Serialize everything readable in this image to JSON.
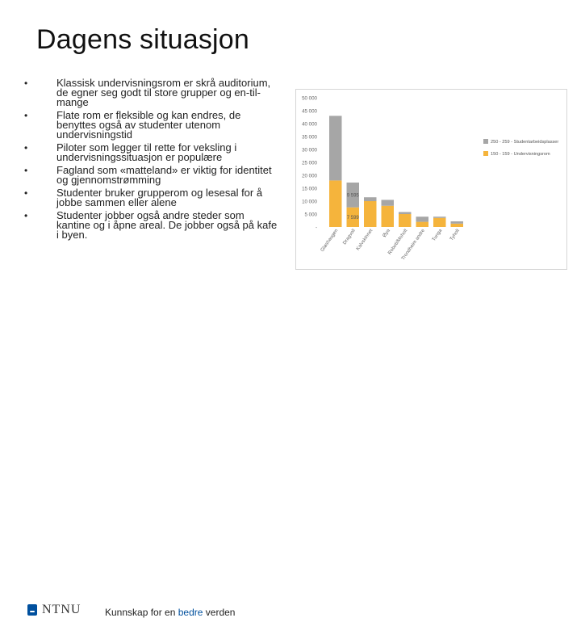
{
  "slide": {
    "title": "Dagens situasjon",
    "bullets": [
      "Klassisk undervisningsrom er skrå auditorium, de egner seg godt til store grupper og en-til-mange",
      "Flate rom er fleksible og kan endres, de benyttes også av studenter utenom undervisningstid",
      "Piloter som legger til rette for veksling i undervisningssituasjon er populære",
      "Fagland som «matteland» er viktig for identitet og gjennomstrømming",
      "Studenter bruker grupperom og lesesal for å jobbe sammen eller alene",
      "Studenter jobber også andre steder som kantine og i åpne areal. De jobber også på kafe i byen."
    ],
    "bullet_glyph": "•"
  },
  "footer": {
    "logo": "NTNU",
    "tagline_pre": "Kunnskap for en ",
    "tagline_hl": "bedre",
    "tagline_post": " verden"
  },
  "colors": {
    "gray": "#a6a6a6",
    "orange": "#f5b43c",
    "ntnu_blue": "#00509e"
  },
  "chart_data": {
    "type": "bar",
    "stacked": true,
    "categories": [
      "Gløshaugen",
      "Dragvoll",
      "Kalvskinnet",
      "Øya",
      "Roboti/Moholt",
      "Trondheim andre",
      "Tunga",
      "Tyholt"
    ],
    "series": [
      {
        "name": "150 - 159 - Undervisningsrom",
        "values": [
          18000,
          7599,
          10000,
          8200,
          5000,
          2000,
          3500,
          1300
        ],
        "color": "#f5b43c"
      },
      {
        "name": "250 - 259 - Studentarbeidsplasser",
        "values": [
          25000,
          9595,
          1500,
          2300,
          800,
          2000,
          500,
          900
        ],
        "color": "#a6a6a6"
      }
    ],
    "data_labels": [
      {
        "category": "Dragvoll",
        "series": 1,
        "text": "9 595"
      },
      {
        "category": "Dragvoll",
        "series": 0,
        "text": "7 599"
      }
    ],
    "yticks": [
      "-",
      "5 000",
      "10 000",
      "15 000",
      "20 000",
      "25 000",
      "30 000",
      "35 000",
      "40 000",
      "45 000",
      "50 000"
    ],
    "ylim": [
      0,
      50000
    ],
    "grid": false,
    "legend_position": "right"
  }
}
